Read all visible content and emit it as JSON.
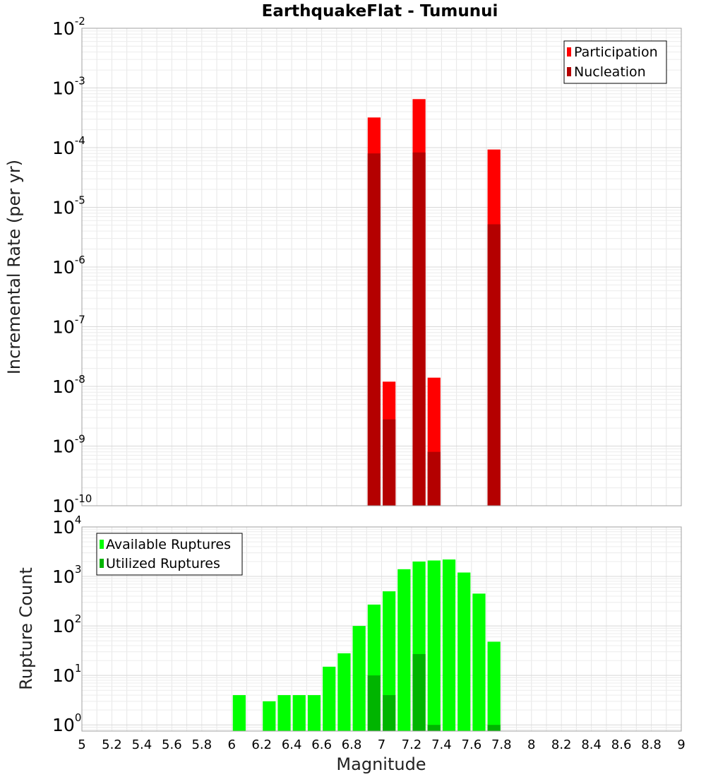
{
  "chart_data": [
    {
      "type": "bar",
      "title": "EarthquakeFlat - Tumunui",
      "xlabel": "",
      "ylabel": "Incremental Rate (per yr)",
      "yscale": "log",
      "ylim": [
        1e-10,
        0.01
      ],
      "xlim": [
        5,
        9
      ],
      "bin_width": 0.1,
      "grid": true,
      "legend_position": "top-right",
      "y_ticks": [
        {
          "base": "10",
          "exp": "-10"
        },
        {
          "base": "10",
          "exp": "-9"
        },
        {
          "base": "10",
          "exp": "-8"
        },
        {
          "base": "10",
          "exp": "-7"
        },
        {
          "base": "10",
          "exp": "-6"
        },
        {
          "base": "10",
          "exp": "-5"
        },
        {
          "base": "10",
          "exp": "-4"
        },
        {
          "base": "10",
          "exp": "-3"
        },
        {
          "base": "10",
          "exp": "-2"
        }
      ],
      "series": [
        {
          "name": "Participation",
          "color": "#ff0000",
          "x": [
            6.95,
            7.05,
            7.25,
            7.35,
            7.75
          ],
          "values": [
            0.00032,
            1.2e-08,
            0.00065,
            1.4e-08,
            9.3e-05
          ]
        },
        {
          "name": "Nucleation",
          "color": "#b40000",
          "x": [
            6.95,
            7.05,
            7.25,
            7.35,
            7.75
          ],
          "values": [
            8e-05,
            2.8e-09,
            8.3e-05,
            8e-10,
            5.2e-06
          ]
        }
      ]
    },
    {
      "type": "bar",
      "title": "",
      "xlabel": "Magnitude",
      "ylabel": "Rupture Count",
      "yscale": "log",
      "ylim": [
        0.75,
        10000
      ],
      "xlim": [
        5,
        9
      ],
      "bin_width": 0.1,
      "grid": true,
      "legend_position": "top-left",
      "x_ticks": [
        "5",
        "5.2",
        "5.4",
        "5.6",
        "5.8",
        "6",
        "6.2",
        "6.4",
        "6.6",
        "6.8",
        "7",
        "7.2",
        "7.4",
        "7.6",
        "7.8",
        "8",
        "8.2",
        "8.4",
        "8.6",
        "8.8",
        "9"
      ],
      "y_ticks": [
        {
          "base": "10",
          "exp": "0"
        },
        {
          "base": "10",
          "exp": "1"
        },
        {
          "base": "10",
          "exp": "2"
        },
        {
          "base": "10",
          "exp": "3"
        },
        {
          "base": "10",
          "exp": "4"
        }
      ],
      "series": [
        {
          "name": "Available Ruptures",
          "color": "#00ff00",
          "x": [
            6.05,
            6.25,
            6.35,
            6.45,
            6.55,
            6.65,
            6.75,
            6.85,
            6.95,
            7.05,
            7.15,
            7.25,
            7.35,
            7.45,
            7.55,
            7.65,
            7.75
          ],
          "values": [
            4,
            3,
            4,
            4,
            4,
            15,
            28,
            100,
            270,
            500,
            1400,
            2000,
            2100,
            2200,
            1200,
            450,
            48
          ]
        },
        {
          "name": "Utilized Ruptures",
          "color": "#00b400",
          "x": [
            6.95,
            7.05,
            7.25,
            7.35,
            7.75
          ],
          "values": [
            10,
            4,
            27,
            1,
            1
          ]
        }
      ]
    }
  ]
}
